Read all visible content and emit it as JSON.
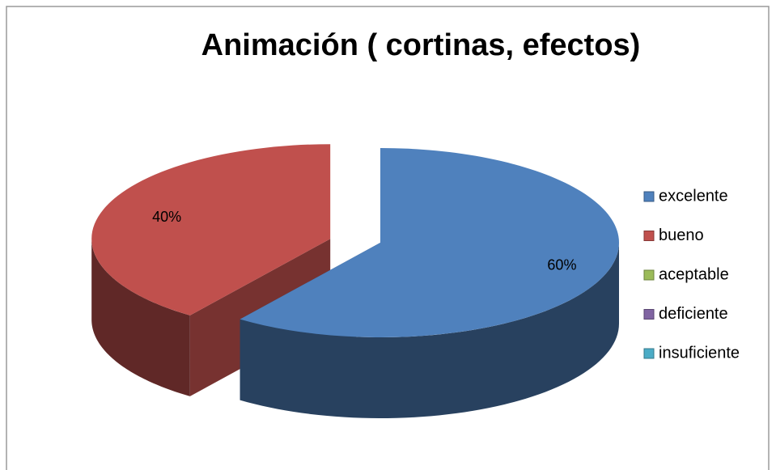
{
  "chart_data": {
    "type": "pie3d",
    "title": "Animación ( cortinas, efectos)",
    "categories": [
      "excelente",
      "bueno",
      "aceptable",
      "deficiente",
      "insuficiente"
    ],
    "values": [
      60,
      40,
      0,
      0,
      0
    ],
    "value_labels": [
      "60%",
      "40%",
      null,
      null,
      null
    ],
    "colors": [
      "#4f81bd",
      "#c0504d",
      "#9bbb59",
      "#8064a2",
      "#4bacc6"
    ],
    "legend": "right"
  }
}
